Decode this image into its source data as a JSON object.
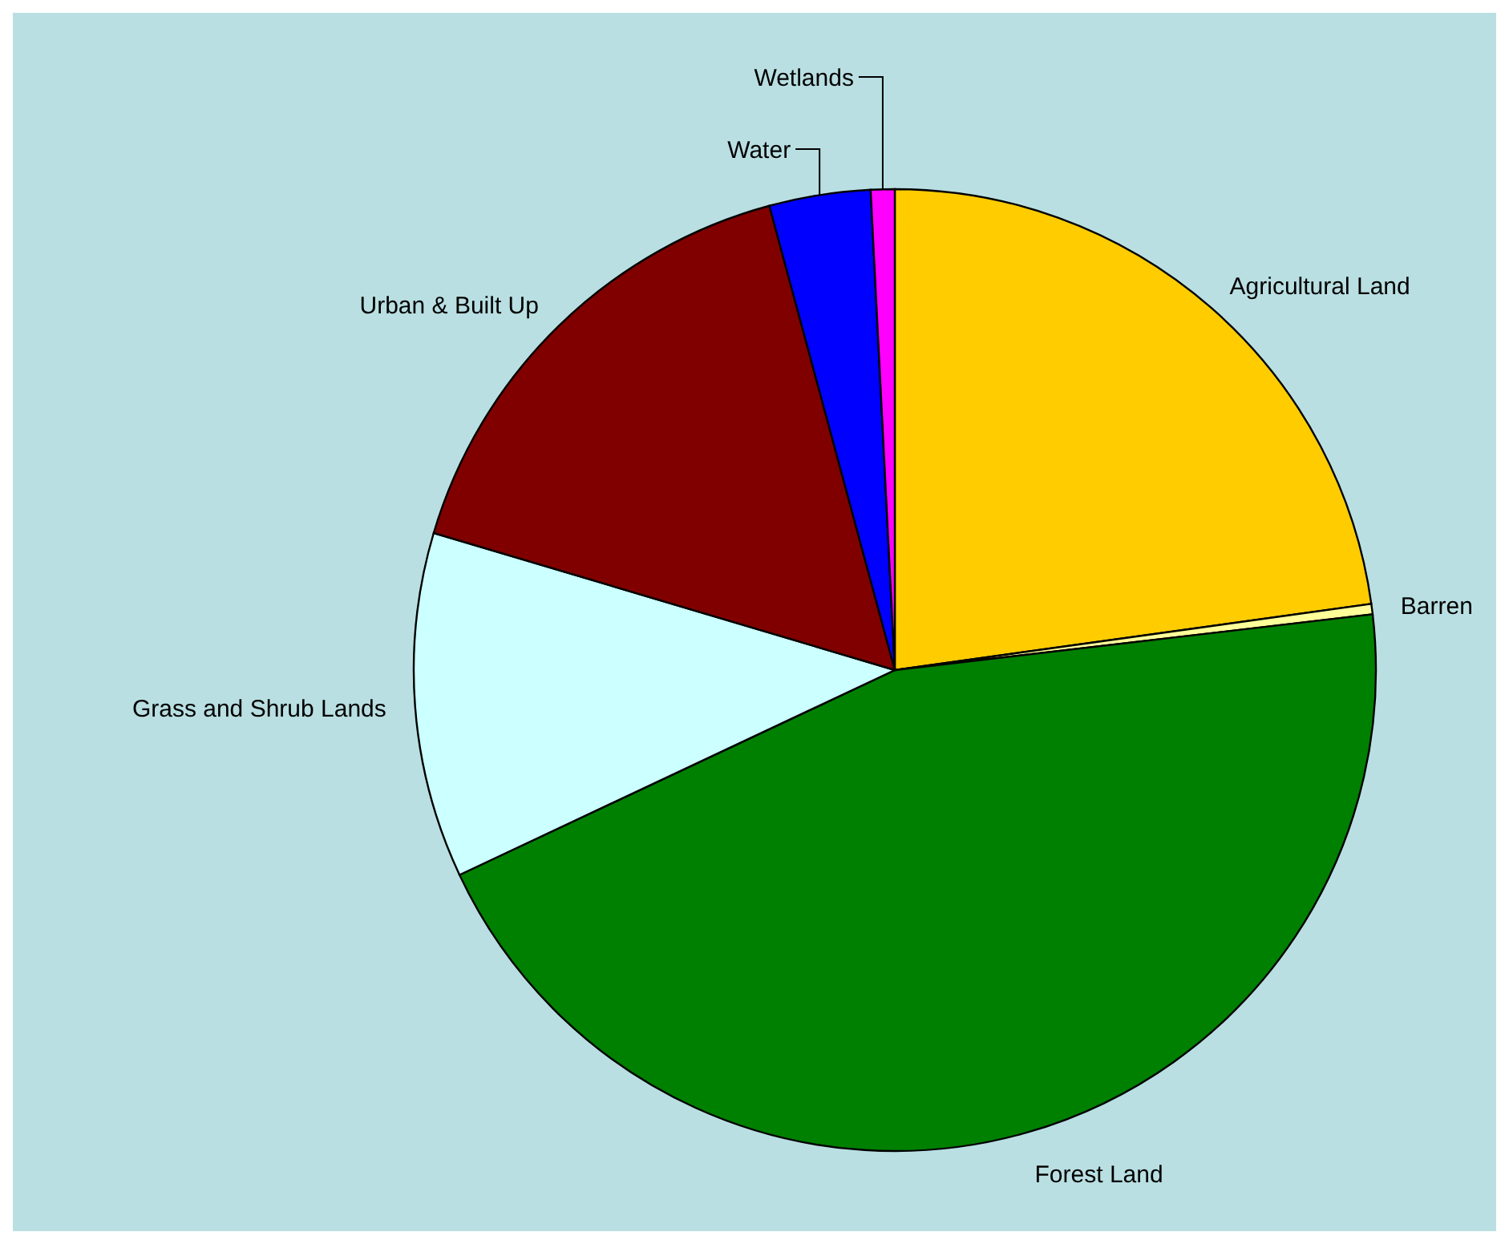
{
  "chart_data": {
    "type": "pie",
    "categories": [
      "Agricultural Land",
      "Barren",
      "Forest Land",
      "Grass and Shrub Lands",
      "Urban & Built Up",
      "Water",
      "Wetlands"
    ],
    "values": [
      22.8,
      0.35,
      44.85,
      11.6,
      16.2,
      3.4,
      0.8
    ],
    "colors": [
      "#ffcc00",
      "#ffff99",
      "#008000",
      "#ccffff",
      "#800000",
      "#0000ff",
      "#ff00ff"
    ]
  }
}
